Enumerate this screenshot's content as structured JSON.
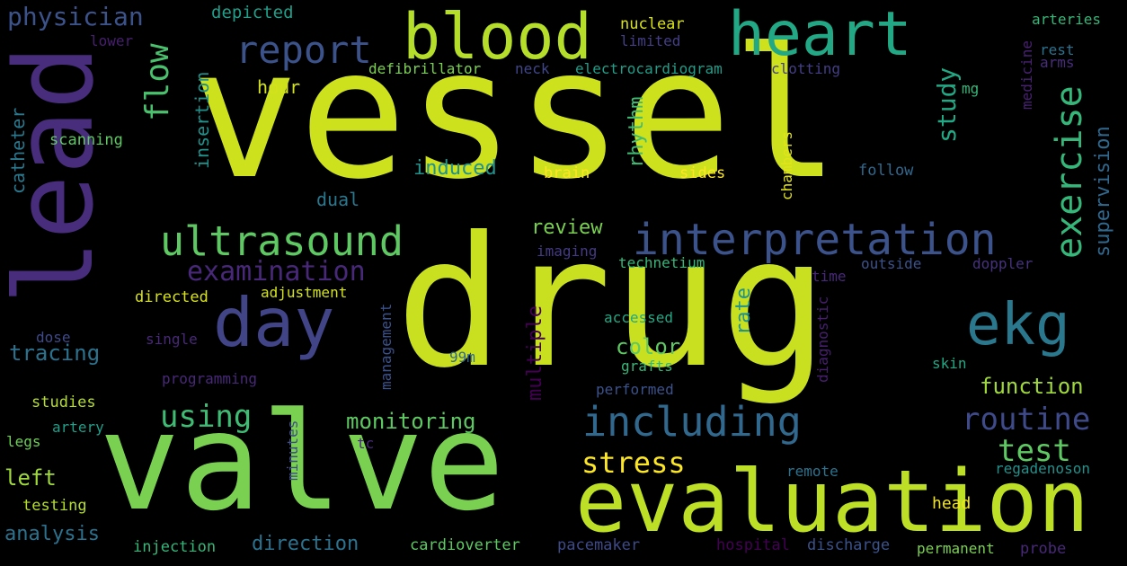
{
  "wordcloud": {
    "words": [
      {
        "text": "vessel",
        "color": "#cde11d"
      },
      {
        "text": "drug",
        "color": "#c8e020"
      },
      {
        "text": "lead",
        "color": "#472d7b"
      },
      {
        "text": "valve",
        "color": "#7ad151"
      },
      {
        "text": "evaluation",
        "color": "#bddf26"
      },
      {
        "text": "blood",
        "color": "#b5de2b"
      },
      {
        "text": "heart",
        "color": "#22a884"
      },
      {
        "text": "day",
        "color": "#414487"
      },
      {
        "text": "ekg",
        "color": "#2a788e"
      },
      {
        "text": "interpretation",
        "color": "#3b528b"
      },
      {
        "text": "ultrasound",
        "color": "#5ec962"
      },
      {
        "text": "including",
        "color": "#31688e"
      },
      {
        "text": "report",
        "color": "#3b528b"
      },
      {
        "text": "examination",
        "color": "#482878"
      },
      {
        "text": "exercise",
        "color": "#35b779"
      },
      {
        "text": "routine",
        "color": "#3e4a89"
      },
      {
        "text": "test",
        "color": "#5ec962"
      },
      {
        "text": "using",
        "color": "#3fbc73"
      },
      {
        "text": "stress",
        "color": "#fde725"
      },
      {
        "text": "flow",
        "color": "#4ac16d"
      },
      {
        "text": "physician",
        "color": "#3b528b"
      },
      {
        "text": "study",
        "color": "#22a884"
      },
      {
        "text": "monitoring",
        "color": "#5ec962"
      },
      {
        "text": "function",
        "color": "#9fda3a"
      },
      {
        "text": "supervision",
        "color": "#31688e"
      },
      {
        "text": "color",
        "color": "#5ec962"
      },
      {
        "text": "rhythm",
        "color": "#3fbc73"
      },
      {
        "text": "induced",
        "color": "#21918c"
      },
      {
        "text": "review",
        "color": "#7ad151"
      },
      {
        "text": "multiple",
        "color": "#440154"
      },
      {
        "text": "rate",
        "color": "#21918c"
      },
      {
        "text": "tracing",
        "color": "#2c728e"
      },
      {
        "text": "left",
        "color": "#9fda3a"
      },
      {
        "text": "analysis",
        "color": "#2c728e"
      },
      {
        "text": "direction",
        "color": "#2c728e"
      },
      {
        "text": "depicted",
        "color": "#1f9e89"
      },
      {
        "text": "insertion",
        "color": "#21918c"
      },
      {
        "text": "catheter",
        "color": "#2a788e"
      },
      {
        "text": "dual",
        "color": "#2a788e"
      },
      {
        "text": "hour",
        "color": "#d2e21b"
      },
      {
        "text": "scanning",
        "color": "#5ec962"
      },
      {
        "text": "defibrillator",
        "color": "#7ad151"
      },
      {
        "text": "electrocardiogram",
        "color": "#1f9e89"
      },
      {
        "text": "neck",
        "color": "#404688"
      },
      {
        "text": "clotting",
        "color": "#433e85"
      },
      {
        "text": "nuclear",
        "color": "#d8e219"
      },
      {
        "text": "limited",
        "color": "#433e85"
      },
      {
        "text": "lower",
        "color": "#481f70"
      },
      {
        "text": "arteries",
        "color": "#35b779"
      },
      {
        "text": "rest",
        "color": "#2c728e"
      },
      {
        "text": "arms",
        "color": "#472d7b"
      },
      {
        "text": "medicine",
        "color": "#482173"
      },
      {
        "text": "mg",
        "color": "#35b779"
      },
      {
        "text": "brain",
        "color": "#fde725"
      },
      {
        "text": "sides",
        "color": "#fde725"
      },
      {
        "text": "chambers",
        "color": "#e2e418"
      },
      {
        "text": "follow",
        "color": "#31688e"
      },
      {
        "text": "imaging",
        "color": "#443a83"
      },
      {
        "text": "technetium",
        "color": "#35b779"
      },
      {
        "text": "time",
        "color": "#482878"
      },
      {
        "text": "outside",
        "color": "#3b528b"
      },
      {
        "text": "doppler",
        "color": "#46327e"
      },
      {
        "text": "directed",
        "color": "#d8e219"
      },
      {
        "text": "adjustment",
        "color": "#d2e21b"
      },
      {
        "text": "accessed",
        "color": "#22a884"
      },
      {
        "text": "diagnostic",
        "color": "#481f70"
      },
      {
        "text": "dose",
        "color": "#3e4a89"
      },
      {
        "text": "single",
        "color": "#482878"
      },
      {
        "text": "management",
        "color": "#3b528b"
      },
      {
        "text": "99m",
        "color": "#31688e"
      },
      {
        "text": "grafts",
        "color": "#35b779"
      },
      {
        "text": "skin",
        "color": "#22a884"
      },
      {
        "text": "programming",
        "color": "#482878"
      },
      {
        "text": "studies",
        "color": "#b5de2b"
      },
      {
        "text": "performed",
        "color": "#3b528b"
      },
      {
        "text": "artery",
        "color": "#1f9e89"
      },
      {
        "text": "legs",
        "color": "#6ece58"
      },
      {
        "text": "testing",
        "color": "#b5de2b"
      },
      {
        "text": "minutes",
        "color": "#3e4a89"
      },
      {
        "text": "tc",
        "color": "#482878"
      },
      {
        "text": "remote",
        "color": "#2c728e"
      },
      {
        "text": "regadenoson",
        "color": "#21918c"
      },
      {
        "text": "head",
        "color": "#f1e51d"
      },
      {
        "text": "injection",
        "color": "#35b779"
      },
      {
        "text": "cardioverter",
        "color": "#5ec962"
      },
      {
        "text": "pacemaker",
        "color": "#3e4a89"
      },
      {
        "text": "hospital",
        "color": "#440154"
      },
      {
        "text": "discharge",
        "color": "#3b528b"
      },
      {
        "text": "permanent",
        "color": "#7ad151"
      },
      {
        "text": "probe",
        "color": "#482878"
      }
    ]
  }
}
